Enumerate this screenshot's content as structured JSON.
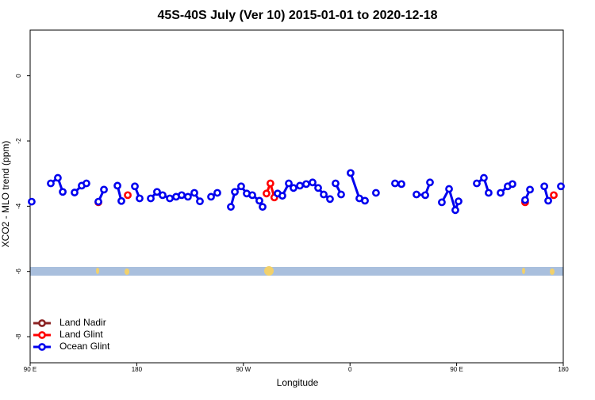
{
  "chart_data": {
    "type": "line",
    "title": "45S-40S July (Ver 10)   2015-01-01 to 2020-12-18",
    "x_label": "Longitude",
    "y_label": "XCO2 - MLO trend (ppm)",
    "xlim": [
      90,
      540
    ],
    "xticks": [
      {
        "value": 90,
        "label": "90 E"
      },
      180,
      {
        "value": 270,
        "label": "90 W"
      },
      {
        "value": 360,
        "label": "0"
      },
      {
        "value": 450,
        "label": "90 E"
      },
      {
        "value": 540,
        "label": "180"
      }
    ],
    "ylim": [
      -8.8,
      1.4
    ],
    "yticks": [
      0,
      -2,
      -4,
      -6,
      -8
    ],
    "legend": "bottom-left",
    "series": [
      {
        "name": "Land Nadir",
        "color": "#8b2323",
        "x": [],
        "values": []
      },
      {
        "name": "Land Glint",
        "color": "#ff0000",
        "x": [
          147.6,
          null,
          172.4,
          null,
          289.5,
          292.8,
          296.1,
          null,
          507.8,
          null,
          532.0
        ],
        "values": [
          -3.88,
          null,
          -3.66,
          null,
          -3.61,
          -3.3,
          -3.73,
          null,
          -3.88,
          null,
          -3.66
        ]
      },
      {
        "name": "Ocean Glint",
        "color": "#0000ee",
        "x": [
          91.3,
          null,
          107.4,
          113.4,
          117.5,
          null,
          127.5,
          133.5,
          137.5,
          null,
          147.6,
          152.3,
          null,
          163.7,
          167.0,
          null,
          178.4,
          182.4,
          null,
          191.8,
          197.1,
          201.8,
          207.9,
          213.2,
          217.9,
          223.2,
          228.6,
          233.3,
          null,
          242.7,
          248.0,
          null,
          259.4,
          262.8,
          268.1,
          272.8,
          277.5,
          283.5,
          286.2,
          null,
          298.9,
          302.9,
          308.3,
          312.3,
          317.7,
          323.0,
          328.4,
          333.1,
          337.8,
          343.1,
          null,
          347.8,
          352.5,
          null,
          360.5,
          367.9,
          372.6,
          null,
          381.9,
          null,
          398.0,
          403.4,
          null,
          416.1,
          423.5,
          427.5,
          null,
          437.5,
          443.6,
          448.9,
          451.6,
          null,
          467.0,
          473.0,
          477.0,
          null,
          487.1,
          493.1,
          497.1,
          null,
          507.8,
          511.9,
          null,
          524.0,
          527.3,
          null,
          538.0
        ],
        "values": [
          -3.86,
          null,
          -3.3,
          -3.13,
          -3.56,
          null,
          -3.58,
          -3.37,
          -3.3,
          null,
          -3.86,
          -3.49,
          null,
          -3.37,
          -3.84,
          null,
          -3.39,
          -3.76,
          null,
          -3.76,
          -3.56,
          -3.66,
          -3.76,
          -3.71,
          -3.66,
          -3.71,
          -3.59,
          -3.85,
          null,
          -3.71,
          -3.59,
          null,
          -4.02,
          -3.56,
          -3.39,
          -3.61,
          -3.66,
          -3.83,
          -4.02,
          null,
          -3.61,
          -3.68,
          -3.3,
          -3.44,
          -3.37,
          -3.32,
          -3.27,
          -3.44,
          -3.64,
          -3.78,
          null,
          -3.3,
          -3.64,
          null,
          -2.98,
          -3.76,
          -3.83,
          null,
          -3.59,
          null,
          -3.3,
          -3.32,
          null,
          -3.64,
          -3.66,
          -3.27,
          null,
          -3.88,
          -3.47,
          -4.12,
          -3.85,
          null,
          -3.3,
          -3.13,
          -3.59,
          null,
          -3.59,
          -3.39,
          -3.32,
          null,
          -3.81,
          -3.49,
          null,
          -3.39,
          -3.83,
          null,
          -3.39
        ]
      }
    ]
  }
}
